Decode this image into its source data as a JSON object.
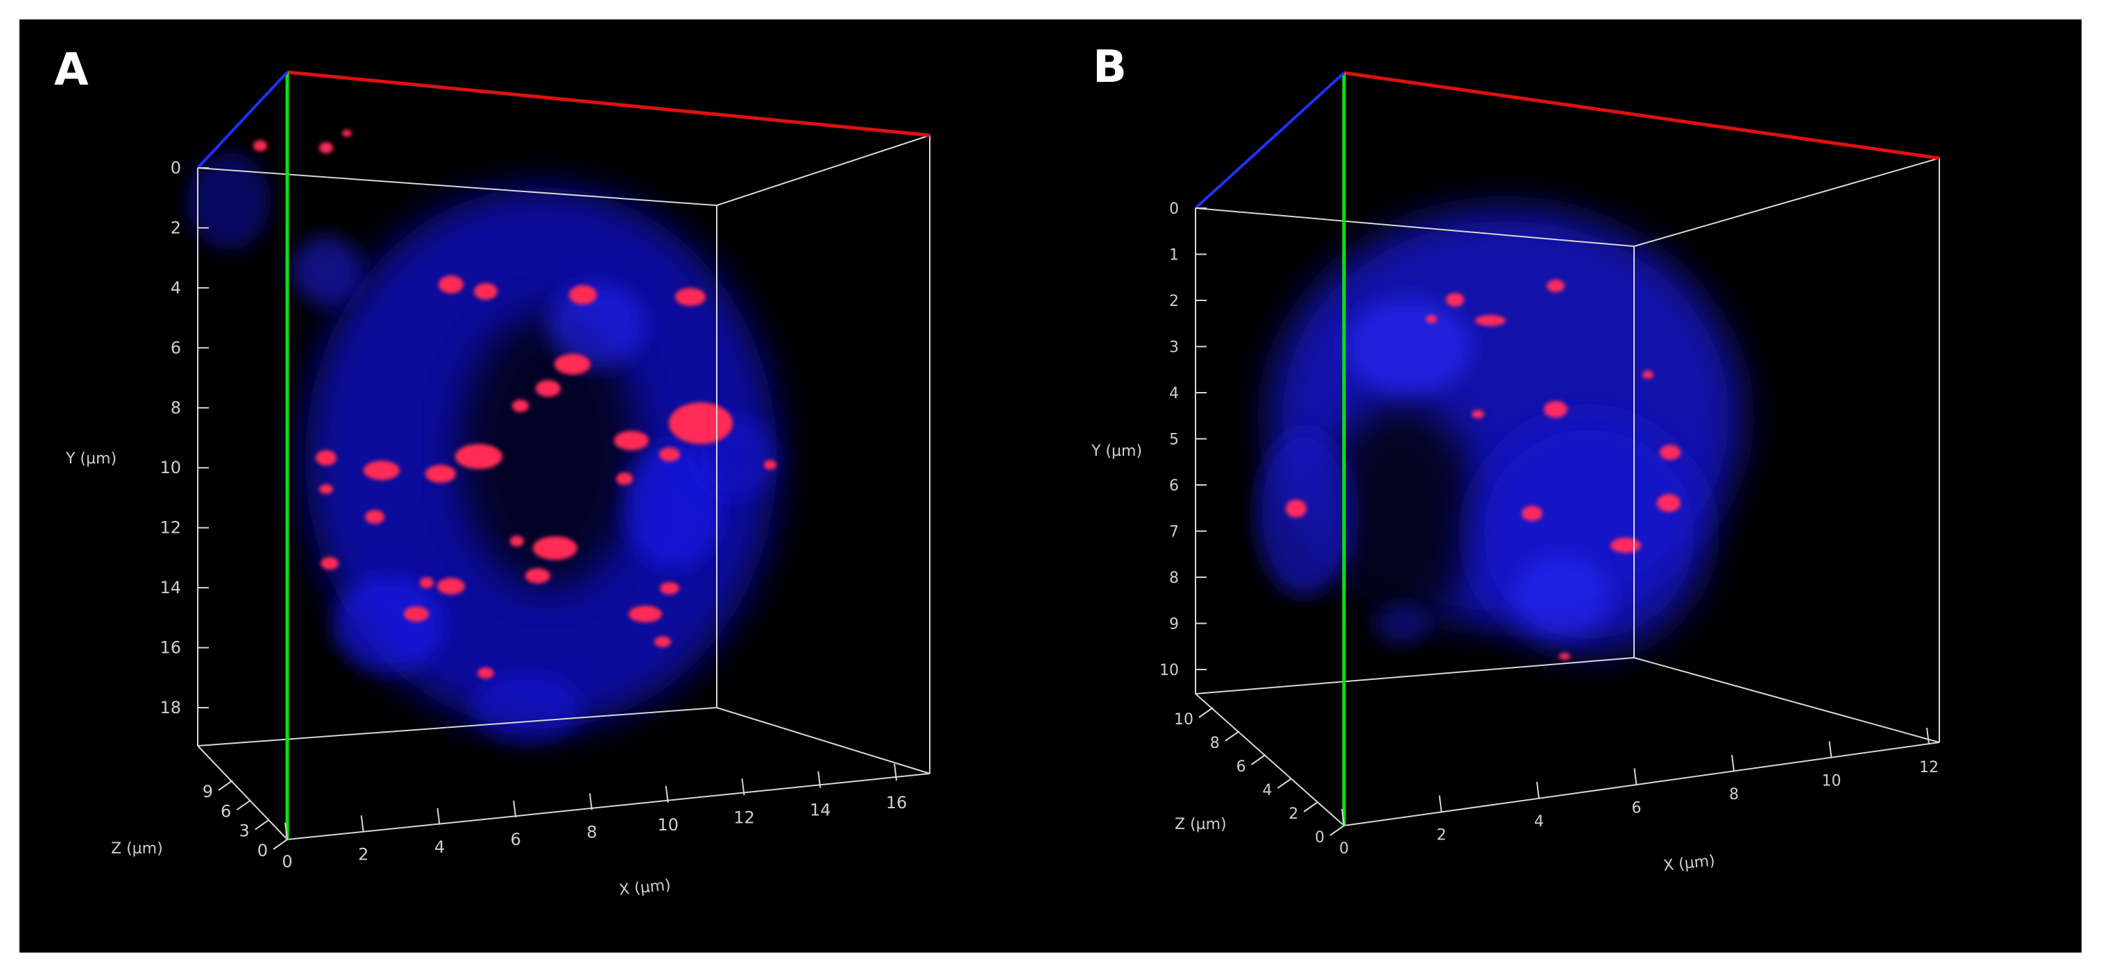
{
  "panels": [
    {
      "label": "A",
      "y_axis": {
        "label": "Y (µm)",
        "ticks": [
          "0",
          "2",
          "4",
          "6",
          "8",
          "10",
          "12",
          "14",
          "16",
          "18"
        ]
      },
      "x_axis": {
        "label": "X (µm)",
        "ticks": [
          "0",
          "2",
          "4",
          "6",
          "8",
          "10",
          "12",
          "14",
          "16"
        ]
      },
      "z_axis": {
        "label": "Z (µm)",
        "ticks": [
          "0",
          "3",
          "6",
          "9"
        ]
      }
    },
    {
      "label": "B",
      "y_axis": {
        "label": "Y (µm)",
        "ticks": [
          "0",
          "1",
          "2",
          "3",
          "4",
          "5",
          "6",
          "7",
          "8",
          "9",
          "10"
        ]
      },
      "x_axis": {
        "label": "X (µm)",
        "ticks": [
          "0",
          "2",
          "4",
          "6",
          "8",
          "10",
          "12"
        ]
      },
      "z_axis": {
        "label": "Z (µm)",
        "ticks": [
          "0",
          "2",
          "4",
          "6",
          "8",
          "10"
        ]
      }
    }
  ],
  "colors": {
    "background": "#000000",
    "frame": "#ffffff",
    "x_edge": "#e01010",
    "y_edge": "#10e010",
    "z_edge": "#2030ff",
    "nucleus": "#1a1adc",
    "spots": "#ff2a50"
  }
}
